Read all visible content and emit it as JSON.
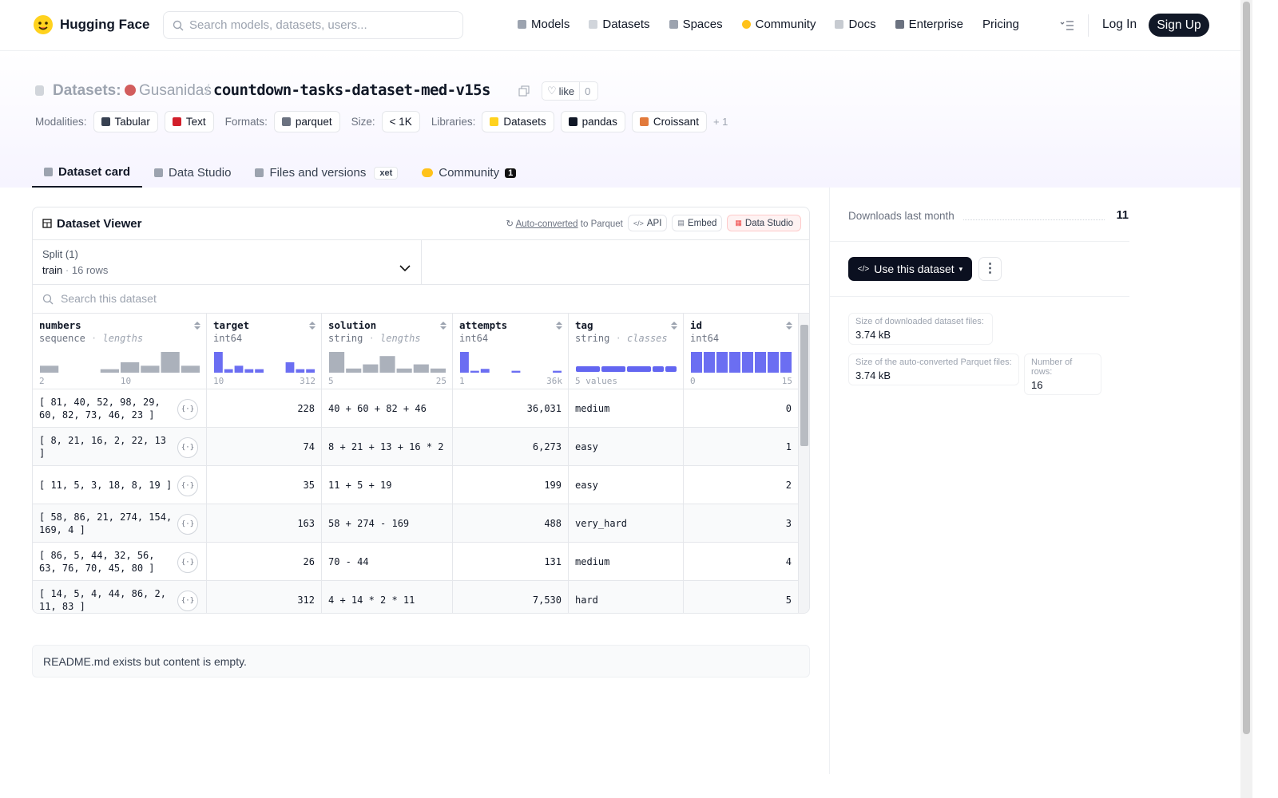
{
  "nav": {
    "brand": "Hugging Face",
    "search": "Search models, datasets, users...",
    "links": [
      "Models",
      "Datasets",
      "Spaces",
      "Community",
      "Docs",
      "Enterprise",
      "Pricing"
    ],
    "login": "Log In",
    "signup": "Sign Up"
  },
  "header": {
    "kind": "Datasets:",
    "owner": "Gusanidas",
    "separator": "/",
    "name": "countdown-tasks-dataset-med-v15s",
    "like": "like",
    "likes": 0,
    "tag_groups": [
      {
        "label": "Modalities:",
        "items": [
          "Tabular",
          "Text"
        ]
      },
      {
        "label": "Formats:",
        "items": [
          "parquet"
        ]
      },
      {
        "label": "Size:",
        "items": [
          "< 1K"
        ]
      },
      {
        "label": "Libraries:",
        "items": [
          "Datasets",
          "pandas",
          "Croissant"
        ]
      }
    ],
    "more": "+ 1"
  },
  "tabs": [
    {
      "label": "Dataset card"
    },
    {
      "label": "Data Studio"
    },
    {
      "label": "Files and versions",
      "badge": "xet"
    },
    {
      "label": "Community",
      "badge": 1
    }
  ],
  "viewer": {
    "title": "Dataset Viewer",
    "converted": "Auto-converted",
    "converted_to": "to Parquet",
    "buttons": [
      "API",
      "Embed",
      "Data Studio"
    ],
    "split_label": "Split (1)",
    "split": "train",
    "rows_label": "16 rows",
    "search": "Search this dataset",
    "columns": [
      {
        "name": "numbers",
        "type": "sequence",
        "kind": "lengths",
        "hist": [
          2,
          0,
          0,
          1,
          3,
          2,
          6,
          2
        ],
        "min": "2",
        "max": "10"
      },
      {
        "name": "target",
        "type": "int64",
        "hist": [
          6,
          1,
          2,
          1,
          1,
          0,
          0,
          3,
          1,
          1
        ],
        "min": "10",
        "max": "312"
      },
      {
        "name": "solution",
        "type": "string",
        "kind": "lengths",
        "hist": [
          5,
          1,
          2,
          4,
          1,
          2,
          1
        ],
        "min": "5",
        "max": "25"
      },
      {
        "name": "attempts",
        "type": "int64",
        "hist": [
          11,
          1,
          2,
          0,
          0,
          1,
          0,
          0,
          0,
          1
        ],
        "min": "1",
        "max": "36k"
      },
      {
        "name": "tag",
        "type": "string",
        "kind": "classes",
        "classes": [
          4,
          4,
          4,
          2,
          2
        ],
        "count": "5 values"
      },
      {
        "name": "id",
        "type": "int64",
        "hist": [
          2,
          2,
          2,
          2,
          2,
          2,
          2,
          2
        ],
        "min": "0",
        "max": "15"
      }
    ],
    "rows": [
      [
        "[ 81, 40, 52, 98, 29, 60, 82, 73, 46, 23 ]",
        "228",
        "40 + 60 + 82 + 46",
        "36,031",
        "medium",
        "0"
      ],
      [
        "[ 8, 21, 16, 2, 22, 13 ]",
        "74",
        "8 + 21 + 13 + 16 * 2",
        "6,273",
        "easy",
        "1"
      ],
      [
        "[ 11, 5, 3, 18, 8, 19 ]",
        "35",
        "11 + 5 + 19",
        "199",
        "easy",
        "2"
      ],
      [
        "[ 58, 86, 21, 274, 154, 169, 4 ]",
        "163",
        "58 + 274 - 169",
        "488",
        "very_hard",
        "3"
      ],
      [
        "[ 86, 5, 44, 32, 56, 63, 76, 70, 45, 80 ]",
        "26",
        "70 - 44",
        "131",
        "medium",
        "4"
      ],
      [
        "[ 14, 5, 4, 44, 86, 2, 11, 83 ]",
        "312",
        "4 + 14 * 2 * 11",
        "7,530",
        "hard",
        "5"
      ]
    ]
  },
  "sidebar": {
    "downloads_label": "Downloads last month",
    "downloads": 11,
    "use": "Use this dataset",
    "stats": [
      {
        "label": "Size of downloaded dataset files:",
        "value": "3.74 kB"
      },
      {
        "label": "Size of the auto-converted Parquet files:",
        "value": "3.74 kB"
      },
      {
        "label": "Number of rows:",
        "value": "16"
      }
    ]
  },
  "readme": "README.md exists but content is empty."
}
